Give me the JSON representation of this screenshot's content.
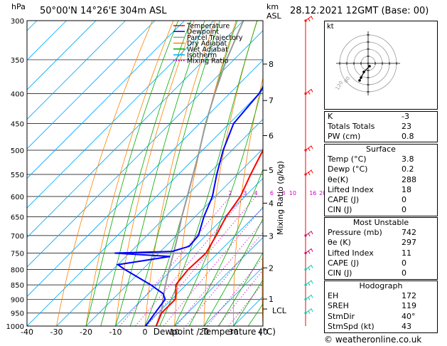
{
  "header": {
    "hpa_label": "hPa",
    "location": "50°00'N  14°26'E  304m  ASL",
    "km_label": "km",
    "asl_label": "ASL",
    "datetime": "28.12.2021  12GMT  (Base: 00)"
  },
  "chart_data": {
    "type": "skew-t",
    "pressure_levels": [
      300,
      350,
      400,
      450,
      500,
      550,
      600,
      650,
      700,
      750,
      800,
      850,
      900,
      950,
      1000
    ],
    "xlabel": "Dewpoint / Temperature (°C)",
    "x_ticks": [
      -40,
      -30,
      -20,
      -10,
      0,
      10,
      20,
      30,
      40
    ],
    "ylabel_right": "Mixing Ratio (g/kg)",
    "km_ticks": [
      {
        "label": "8",
        "p": 356
      },
      {
        "label": "7",
        "p": 411
      },
      {
        "label": "6",
        "p": 472
      },
      {
        "label": "5",
        "p": 541
      },
      {
        "label": "4",
        "p": 616
      },
      {
        "label": "3",
        "p": 701
      },
      {
        "label": "2",
        "p": 795
      },
      {
        "label": "1",
        "p": 899
      }
    ],
    "lcl_label": "LCL",
    "lcl_pressure": 935,
    "mixing_ratio_labels": [
      "2",
      "3",
      "4",
      "6",
      "8",
      "10",
      "16",
      "20",
      "25"
    ],
    "legend": [
      {
        "name": "Temperature",
        "color": "#ff0000",
        "style": "solid"
      },
      {
        "name": "Dewpoint",
        "color": "#0000ff",
        "style": "solid"
      },
      {
        "name": "Parcel Trajectory",
        "color": "#999999",
        "style": "solid"
      },
      {
        "name": "Dry Adiabat",
        "color": "#ff8000",
        "style": "solid"
      },
      {
        "name": "Wet Adiabat",
        "color": "#00aa00",
        "style": "solid"
      },
      {
        "name": "Isotherm",
        "color": "#00aaff",
        "style": "solid"
      },
      {
        "name": "Mixing Ratio",
        "color": "#cc00cc",
        "style": "dotted"
      }
    ],
    "series": [
      {
        "name": "Temperature",
        "color": "#ff0000",
        "points": [
          [
            1000,
            3.8
          ],
          [
            950,
            1.2
          ],
          [
            900,
            1.2
          ],
          [
            880,
            -0.5
          ],
          [
            850,
            -3.5
          ],
          [
            800,
            -4.5
          ],
          [
            750,
            -4.0
          ],
          [
            700,
            -6.5
          ],
          [
            650,
            -9.5
          ],
          [
            600,
            -11.5
          ],
          [
            550,
            -15.5
          ],
          [
            500,
            -19.5
          ],
          [
            450,
            -25.5
          ],
          [
            400,
            -32.0
          ],
          [
            350,
            -39.5
          ],
          [
            300,
            -47.0
          ]
        ]
      },
      {
        "name": "Dewpoint",
        "color": "#0000ff",
        "points": [
          [
            1000,
            0.2
          ],
          [
            950,
            -1.0
          ],
          [
            900,
            -2.2
          ],
          [
            880,
            -4.8
          ],
          [
            850,
            -12.0
          ],
          [
            800,
            -26.0
          ],
          [
            785,
            -30.0
          ],
          [
            760,
            -15.0
          ],
          [
            750,
            -35.0
          ],
          [
            745,
            -16.0
          ],
          [
            730,
            -12.0
          ],
          [
            700,
            -12.5
          ],
          [
            650,
            -17.0
          ],
          [
            600,
            -21.0
          ],
          [
            550,
            -27.0
          ],
          [
            500,
            -33.0
          ],
          [
            450,
            -38.5
          ],
          [
            400,
            -40.0
          ],
          [
            350,
            -44.5
          ],
          [
            330,
            -51.0
          ],
          [
            300,
            -53.0
          ]
        ]
      },
      {
        "name": "Parcel Trajectory",
        "color": "#999999",
        "points": [
          [
            1000,
            3.8
          ],
          [
            935,
            0.0
          ],
          [
            900,
            -3.0
          ],
          [
            850,
            -7.0
          ],
          [
            800,
            -11.0
          ],
          [
            750,
            -15.0
          ],
          [
            700,
            -19.5
          ],
          [
            650,
            -24.5
          ],
          [
            600,
            -29.5
          ],
          [
            550,
            -35.0
          ],
          [
            500,
            -41.0
          ],
          [
            450,
            -48.0
          ],
          [
            400,
            -55.0
          ],
          [
            350,
            -62.5
          ],
          [
            300,
            -70.0
          ]
        ]
      }
    ],
    "wind_barbs_pressure": [
      300,
      400,
      500,
      550,
      700,
      750,
      800,
      850,
      900,
      950
    ]
  },
  "indices": {
    "rows": [
      {
        "label": "K",
        "value": "-3"
      },
      {
        "label": "Totals Totals",
        "value": "23"
      },
      {
        "label": "PW (cm)",
        "value": "0.8"
      }
    ]
  },
  "surface": {
    "title": "Surface",
    "rows": [
      {
        "label": "Temp (°C)",
        "value": "3.8"
      },
      {
        "label": "Dewp (°C)",
        "value": "0.2"
      },
      {
        "label": "θe(K)",
        "value": "288"
      },
      {
        "label": "Lifted Index",
        "value": "18"
      },
      {
        "label": "CAPE (J)",
        "value": "0"
      },
      {
        "label": "CIN (J)",
        "value": "0"
      }
    ]
  },
  "most_unstable": {
    "title": "Most Unstable",
    "rows": [
      {
        "label": "Pressure (mb)",
        "value": "742"
      },
      {
        "label": "θe (K)",
        "value": "297"
      },
      {
        "label": "Lifted Index",
        "value": "11"
      },
      {
        "label": "CAPE (J)",
        "value": "0"
      },
      {
        "label": "CIN (J)",
        "value": "0"
      }
    ]
  },
  "hodograph": {
    "title": "Hodograph",
    "label": "kt",
    "ring_labels": [
      "120",
      "80"
    ],
    "rows": [
      {
        "label": "EH",
        "value": "172"
      },
      {
        "label": "SREH",
        "value": "119"
      },
      {
        "label": "StmDir",
        "value": "40°"
      },
      {
        "label": "StmSpd (kt)",
        "value": "43"
      }
    ]
  },
  "footer": {
    "copyright": "© weatheronline.co.uk"
  }
}
